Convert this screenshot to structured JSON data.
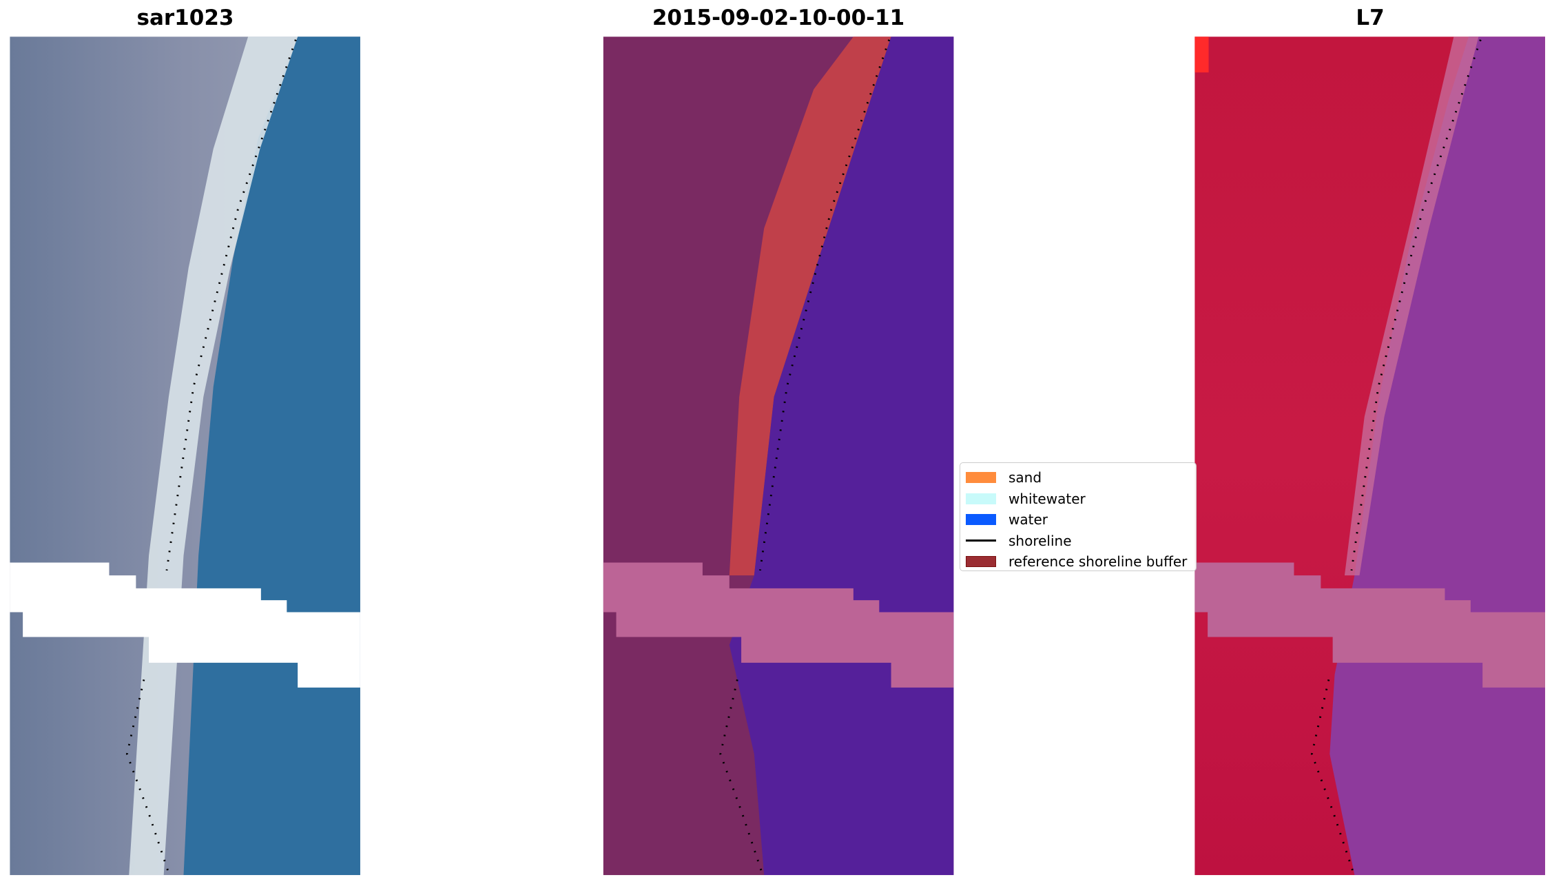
{
  "panels": [
    {
      "title": "sar1023",
      "type": "rgb"
    },
    {
      "title": "2015-09-02-10-00-11",
      "type": "classified"
    },
    {
      "title": "L7",
      "type": "false-color"
    }
  ],
  "legend": {
    "items": [
      {
        "label": "sand",
        "color": "#ff8c3c"
      },
      {
        "label": "whitewater",
        "color": "#c8fafa"
      },
      {
        "label": "water",
        "color": "#0a5aff"
      },
      {
        "label": "shoreline",
        "color": "#000000"
      },
      {
        "label": "reference shoreline buffer",
        "color": "#9b2d32"
      }
    ]
  }
}
